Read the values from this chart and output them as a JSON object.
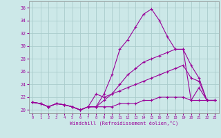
{
  "xlabel": "Windchill (Refroidissement éolien,°C)",
  "bg_color": "#cce8e8",
  "line_color": "#990099",
  "grid_color": "#aacccc",
  "xlim": [
    -0.5,
    23.5
  ],
  "ylim": [
    19.5,
    37.0
  ],
  "yticks": [
    20,
    22,
    24,
    26,
    28,
    30,
    32,
    34,
    36
  ],
  "xticks": [
    0,
    1,
    2,
    3,
    4,
    5,
    6,
    7,
    8,
    9,
    10,
    11,
    12,
    13,
    14,
    15,
    16,
    17,
    18,
    19,
    20,
    21,
    22,
    23
  ],
  "series": [
    {
      "x": [
        0,
        1,
        2,
        3,
        4,
        5,
        6,
        7,
        8,
        9,
        10,
        11,
        12,
        13,
        14,
        15,
        16,
        17,
        18,
        19,
        20,
        21,
        22,
        23
      ],
      "y": [
        21.2,
        21.0,
        20.5,
        21.0,
        20.8,
        20.5,
        20.0,
        20.5,
        20.5,
        22.5,
        25.5,
        29.5,
        31.0,
        33.0,
        35.0,
        35.8,
        34.0,
        31.5,
        29.5,
        29.5,
        21.5,
        23.5,
        21.5,
        21.5
      ]
    },
    {
      "x": [
        0,
        1,
        2,
        3,
        4,
        5,
        6,
        7,
        8,
        9,
        10,
        11,
        12,
        13,
        14,
        15,
        16,
        17,
        18,
        19,
        20,
        21,
        22,
        23
      ],
      "y": [
        21.2,
        21.0,
        20.5,
        21.0,
        20.8,
        20.5,
        20.0,
        20.5,
        20.5,
        21.5,
        22.5,
        24.0,
        25.5,
        26.5,
        27.5,
        28.0,
        28.5,
        29.0,
        29.5,
        29.5,
        27.0,
        25.0,
        21.5,
        21.5
      ]
    },
    {
      "x": [
        0,
        1,
        2,
        3,
        4,
        5,
        6,
        7,
        8,
        9,
        10,
        11,
        12,
        13,
        14,
        15,
        16,
        17,
        18,
        19,
        20,
        21,
        22,
        23
      ],
      "y": [
        21.2,
        21.0,
        20.5,
        21.0,
        20.8,
        20.5,
        20.0,
        20.5,
        22.5,
        22.0,
        22.5,
        23.0,
        23.5,
        24.0,
        24.5,
        25.0,
        25.5,
        26.0,
        26.5,
        27.0,
        25.0,
        24.5,
        21.5,
        21.5
      ]
    },
    {
      "x": [
        0,
        1,
        2,
        3,
        4,
        5,
        6,
        7,
        8,
        9,
        10,
        11,
        12,
        13,
        14,
        15,
        16,
        17,
        18,
        19,
        20,
        21,
        22,
        23
      ],
      "y": [
        21.2,
        21.0,
        20.5,
        21.0,
        20.8,
        20.5,
        20.0,
        20.5,
        20.5,
        20.5,
        20.5,
        21.0,
        21.0,
        21.0,
        21.5,
        21.5,
        22.0,
        22.0,
        22.0,
        22.0,
        21.5,
        21.5,
        21.5,
        21.5
      ]
    }
  ]
}
